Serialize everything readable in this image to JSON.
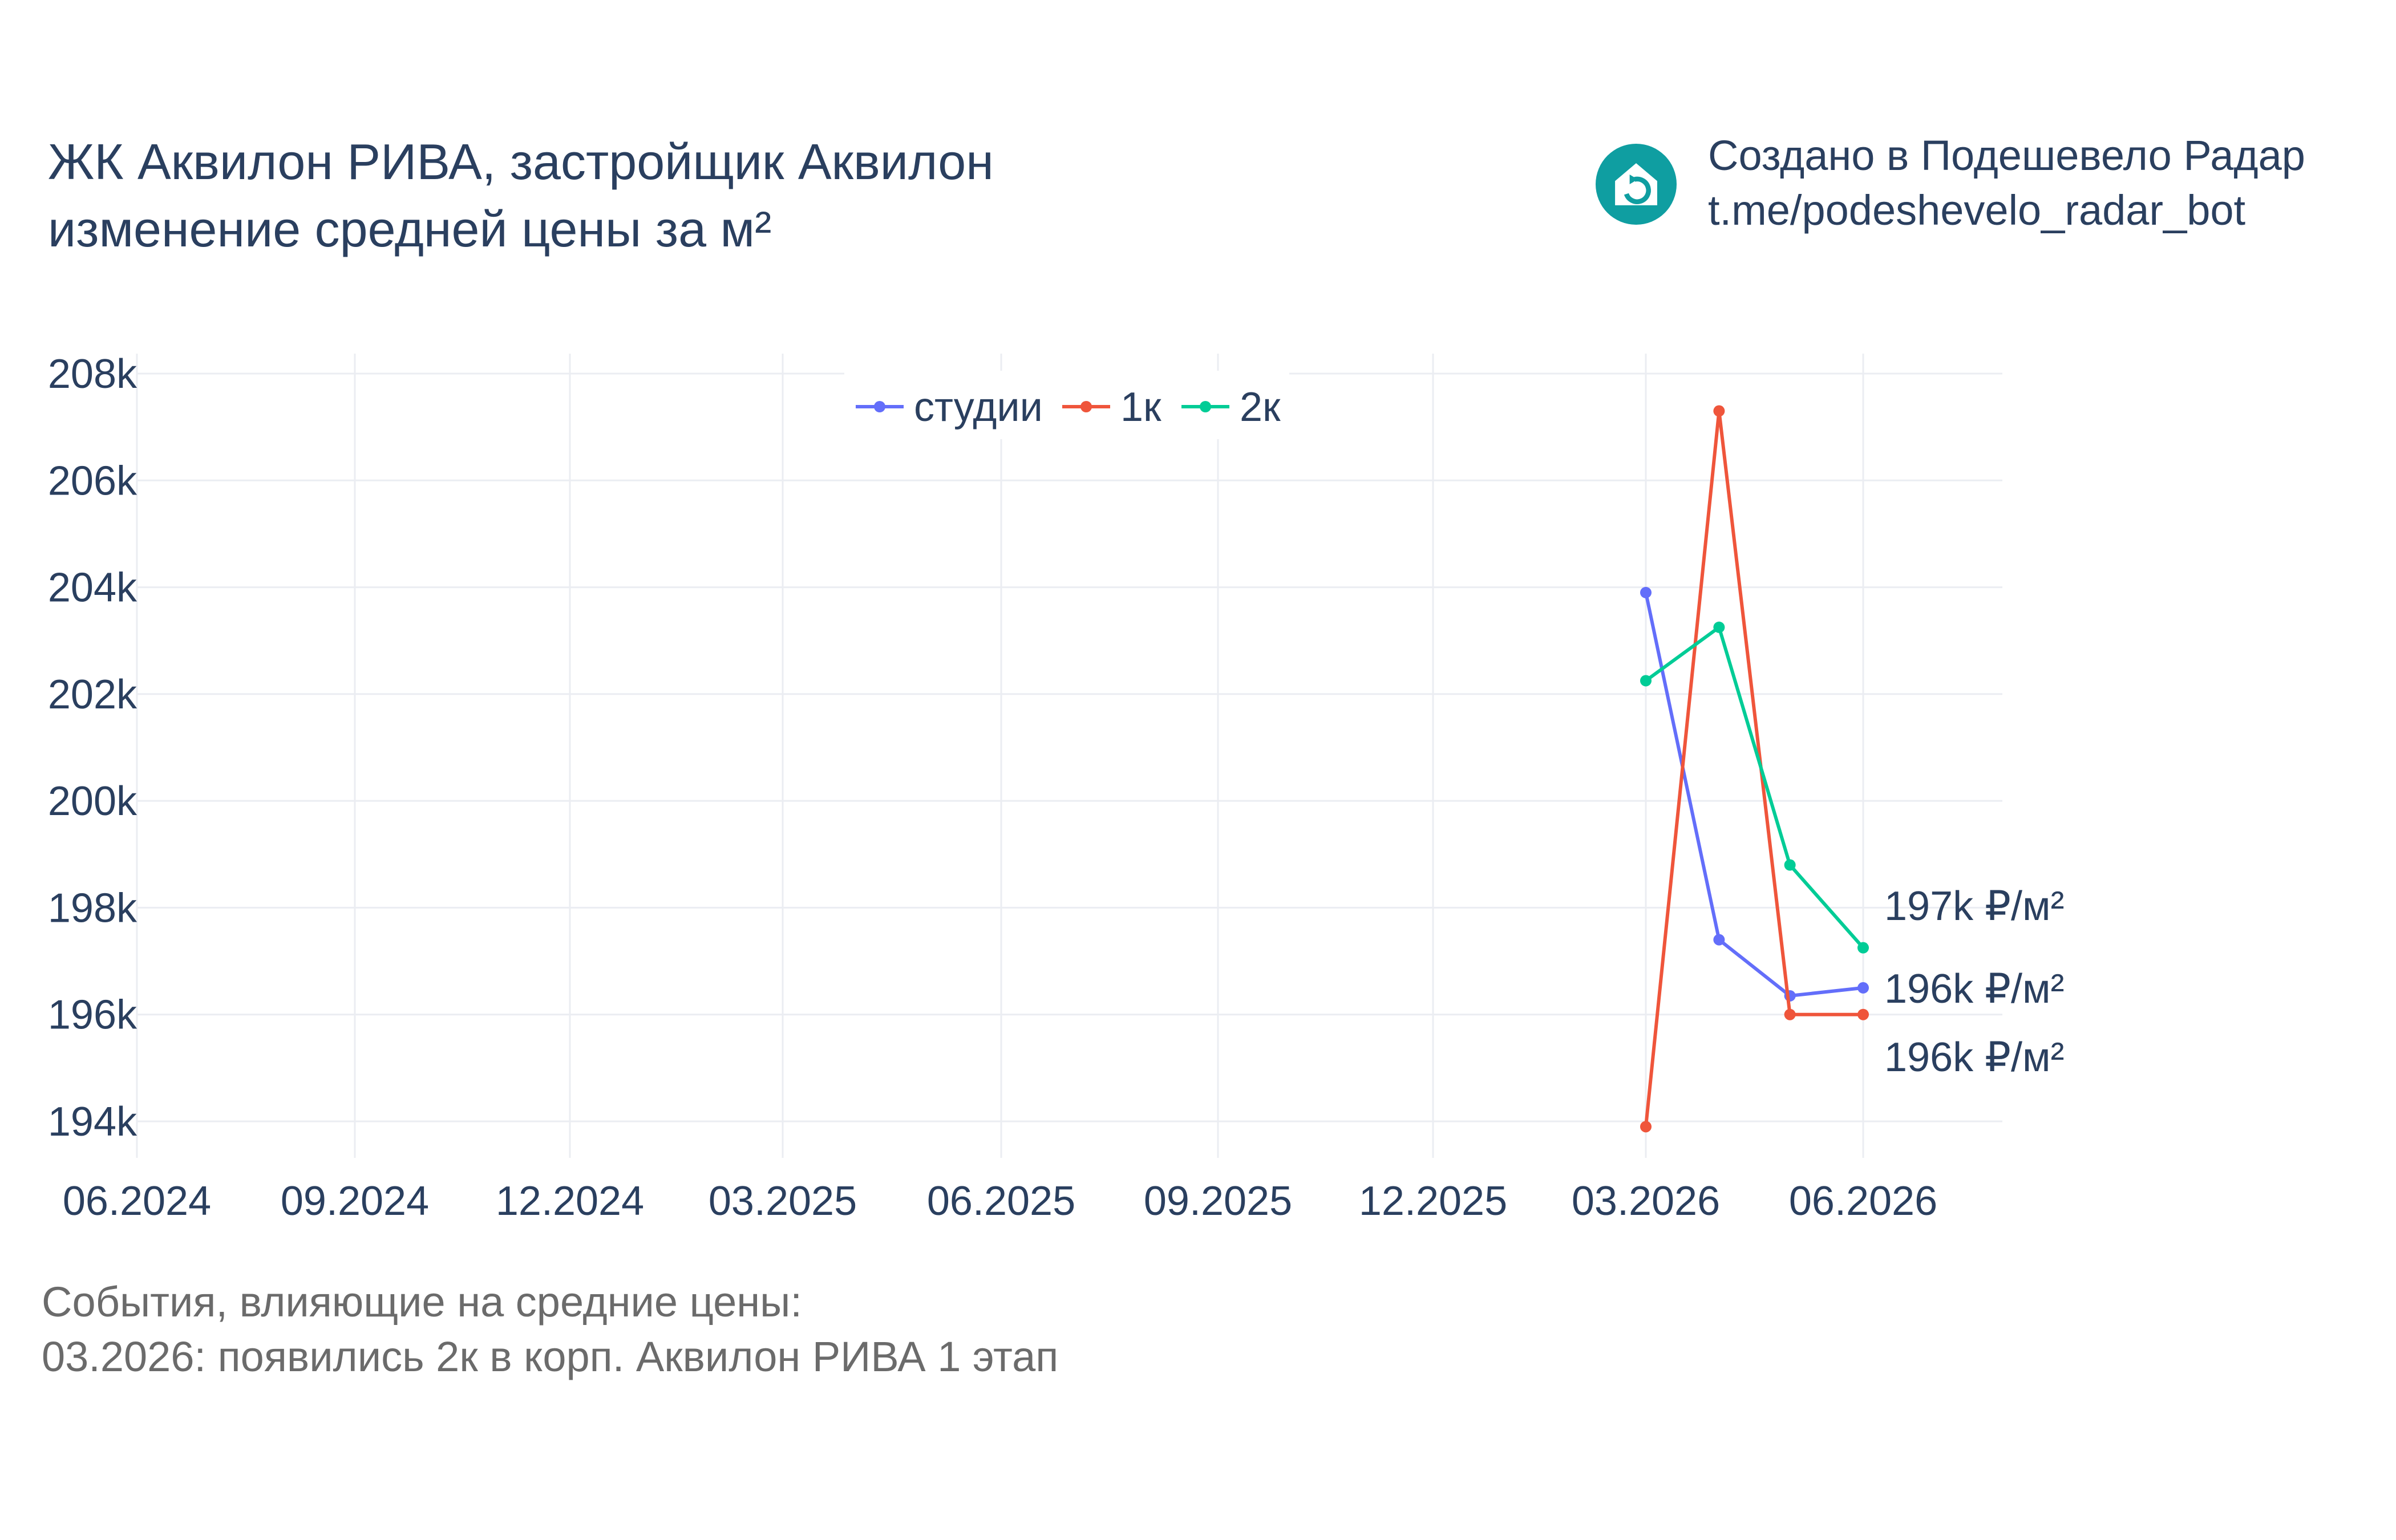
{
  "header": {
    "title_line1": "ЖК Аквилон РИВА, застройщик Аквилон",
    "title_line2": "изменение средней цены за м²"
  },
  "brand": {
    "logo_icon": "house-refresh-icon",
    "logo_color": "#0f9ea1",
    "line1": "Создано в Подешевело Радар",
    "line2": "t.me/podeshevelo_radar_bot"
  },
  "events": {
    "heading": "События, влияющие на средние цены:",
    "items": [
      "03.2026: появились 2к в корп. Аквилон РИВА 1 этап"
    ]
  },
  "chart_data": {
    "type": "line",
    "x_tick_labels": [
      "06.2024",
      "09.2024",
      "12.2024",
      "03.2025",
      "06.2025",
      "09.2025",
      "12.2025",
      "03.2026",
      "06.2026"
    ],
    "x_range": [
      "2024-06-01",
      "2026-08-15"
    ],
    "y_tick_labels": [
      "194k",
      "196k",
      "198k",
      "200k",
      "202k",
      "204k",
      "206k",
      "208k"
    ],
    "y_ticks": [
      194000,
      196000,
      198000,
      200000,
      202000,
      204000,
      206000,
      208000
    ],
    "ylim": [
      193000,
      208300
    ],
    "grid": true,
    "legend_position": "top-center",
    "series": [
      {
        "name": "студии",
        "color": "#636efa",
        "x": [
          "2026-03-01",
          "2026-04-01",
          "2026-05-01",
          "2026-06-01"
        ],
        "y": [
          203900,
          197400,
          196350,
          196500
        ]
      },
      {
        "name": "1к",
        "color": "#ef553b",
        "x": [
          "2026-03-01",
          "2026-04-01",
          "2026-05-01",
          "2026-06-01"
        ],
        "y": [
          193900,
          207300,
          196000,
          196000
        ]
      },
      {
        "name": "2к",
        "color": "#00cc96",
        "x": [
          "2026-03-01",
          "2026-04-01",
          "2026-05-01",
          "2026-06-01"
        ],
        "y": [
          202250,
          203250,
          198800,
          197250
        ]
      }
    ],
    "end_labels": [
      {
        "text": "197k ₽/м²",
        "series": "2к",
        "value": 197250
      },
      {
        "text": "196k ₽/м²",
        "series": "студии",
        "value": 196500
      },
      {
        "text": "196k ₽/м²",
        "series": "1к",
        "value": 196000
      }
    ]
  }
}
